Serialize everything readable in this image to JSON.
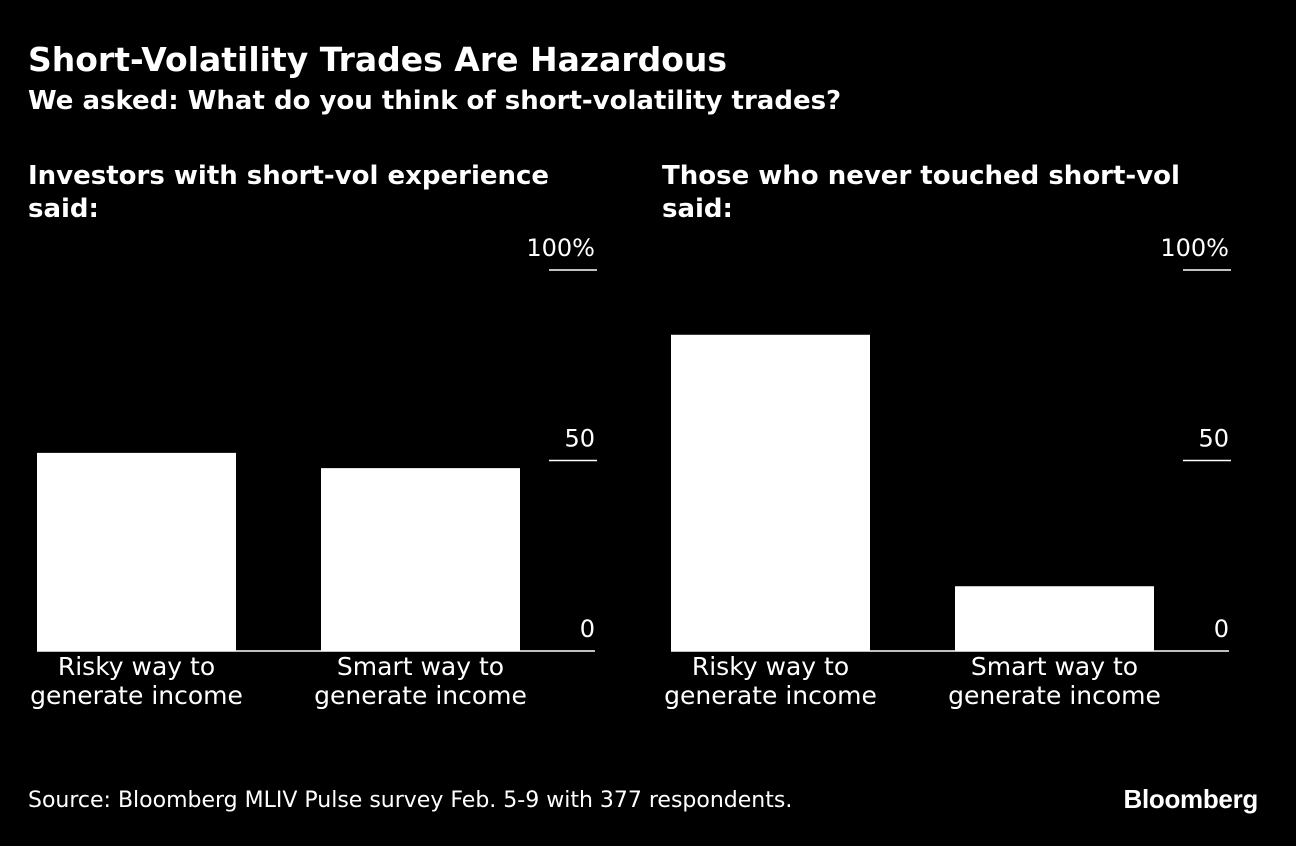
{
  "title": "Short-Volatility Trades Are Hazardous",
  "subtitle": "We asked: What do you think of short-volatility trades?",
  "source": "Source: Bloomberg MLIV Pulse survey Feb. 5-9 with 377 respondents.",
  "brand": "Bloomberg",
  "colors": {
    "background": "#000000",
    "bar": "#ffffff",
    "text": "#ffffff"
  },
  "chart_data": [
    {
      "type": "bar",
      "title": "Investors with short-vol experience said:",
      "categories": [
        [
          "Risky way to",
          "generate income"
        ],
        [
          "Smart way to",
          "generate income"
        ]
      ],
      "values": [
        52,
        48
      ],
      "ylim": [
        0,
        100
      ],
      "yticks": [
        0,
        50,
        100
      ],
      "ytick_labels": [
        "0",
        "50",
        "100%"
      ],
      "axis_position": "right",
      "grid": false
    },
    {
      "type": "bar",
      "title": "Those who never touched short-vol said:",
      "categories": [
        [
          "Risky way to",
          "generate income"
        ],
        [
          "Smart way to",
          "generate income"
        ]
      ],
      "values": [
        83,
        17
      ],
      "ylim": [
        0,
        100
      ],
      "yticks": [
        0,
        50,
        100
      ],
      "ytick_labels": [
        "0",
        "50",
        "100%"
      ],
      "axis_position": "right",
      "grid": false
    }
  ]
}
